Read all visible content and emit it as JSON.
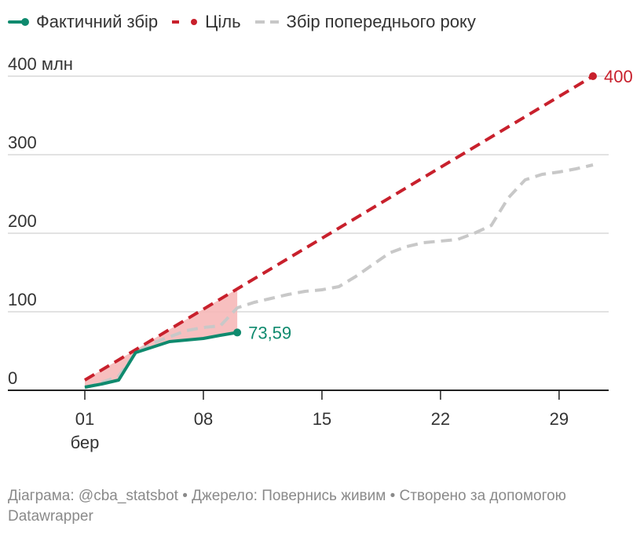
{
  "colors": {
    "actual": "#0f8a6e",
    "target": "#c8202c",
    "previous": "#c8c8c8",
    "gap_fill": "#f6b8b8",
    "grid": "#d9d9d9",
    "axis": "#222222",
    "text": "#333333",
    "footer": "#8a8a8a"
  },
  "legend": [
    {
      "key": "actual",
      "label": "Фактичний збір",
      "style": "solid"
    },
    {
      "key": "target",
      "label": "Ціль",
      "style": "dashed"
    },
    {
      "key": "previous",
      "label": "Збір попереднього року",
      "style": "dashed-light"
    }
  ],
  "footer": {
    "text": "Діаграма: @cba_statsbot • Джерело: Повернись живим • Створено за допомогою Datawrapper"
  },
  "chart_data": {
    "type": "line",
    "x_unit": "day of March",
    "xlim": [
      1,
      31
    ],
    "ylim": [
      0,
      400
    ],
    "y_ticks": [
      {
        "value": 0,
        "label": "0"
      },
      {
        "value": 100,
        "label": "100"
      },
      {
        "value": 200,
        "label": "200"
      },
      {
        "value": 300,
        "label": "300"
      },
      {
        "value": 400,
        "label": "400 млн"
      }
    ],
    "x_ticks": [
      {
        "value": 1,
        "label": "01",
        "sublabel": "бер"
      },
      {
        "value": 8,
        "label": "08",
        "sublabel": ""
      },
      {
        "value": 15,
        "label": "15",
        "sublabel": ""
      },
      {
        "value": 22,
        "label": "22",
        "sublabel": ""
      },
      {
        "value": 29,
        "label": "29",
        "sublabel": ""
      }
    ],
    "series": [
      {
        "key": "previous",
        "name": "Збір попереднього року",
        "x": [
          1,
          2,
          3,
          4,
          5,
          6,
          7,
          8,
          9,
          10,
          11,
          12,
          13,
          14,
          15,
          16,
          17,
          18,
          19,
          20,
          21,
          22,
          23,
          24,
          25,
          26,
          27,
          28,
          29,
          30,
          31
        ],
        "values": [
          3,
          10,
          18,
          48,
          60,
          68,
          76,
          80,
          82,
          105,
          112,
          117,
          122,
          126,
          128,
          132,
          145,
          160,
          175,
          183,
          188,
          190,
          192,
          200,
          210,
          245,
          268,
          275,
          278,
          282,
          287
        ]
      },
      {
        "key": "target",
        "name": "Ціль",
        "x": [
          1,
          31
        ],
        "values": [
          13,
          400
        ]
      },
      {
        "key": "actual",
        "name": "Фактичний збір",
        "x": [
          1,
          2,
          3,
          4,
          5,
          6,
          7,
          8,
          9,
          10
        ],
        "values": [
          4,
          8,
          13,
          48,
          55,
          62,
          64,
          66,
          70,
          73.59
        ]
      }
    ],
    "end_labels": [
      {
        "series": "target",
        "text": "400"
      },
      {
        "series": "actual",
        "text": "73,59"
      }
    ],
    "gap_area": {
      "between": [
        "target",
        "actual"
      ],
      "x_range": [
        1,
        10
      ]
    }
  }
}
